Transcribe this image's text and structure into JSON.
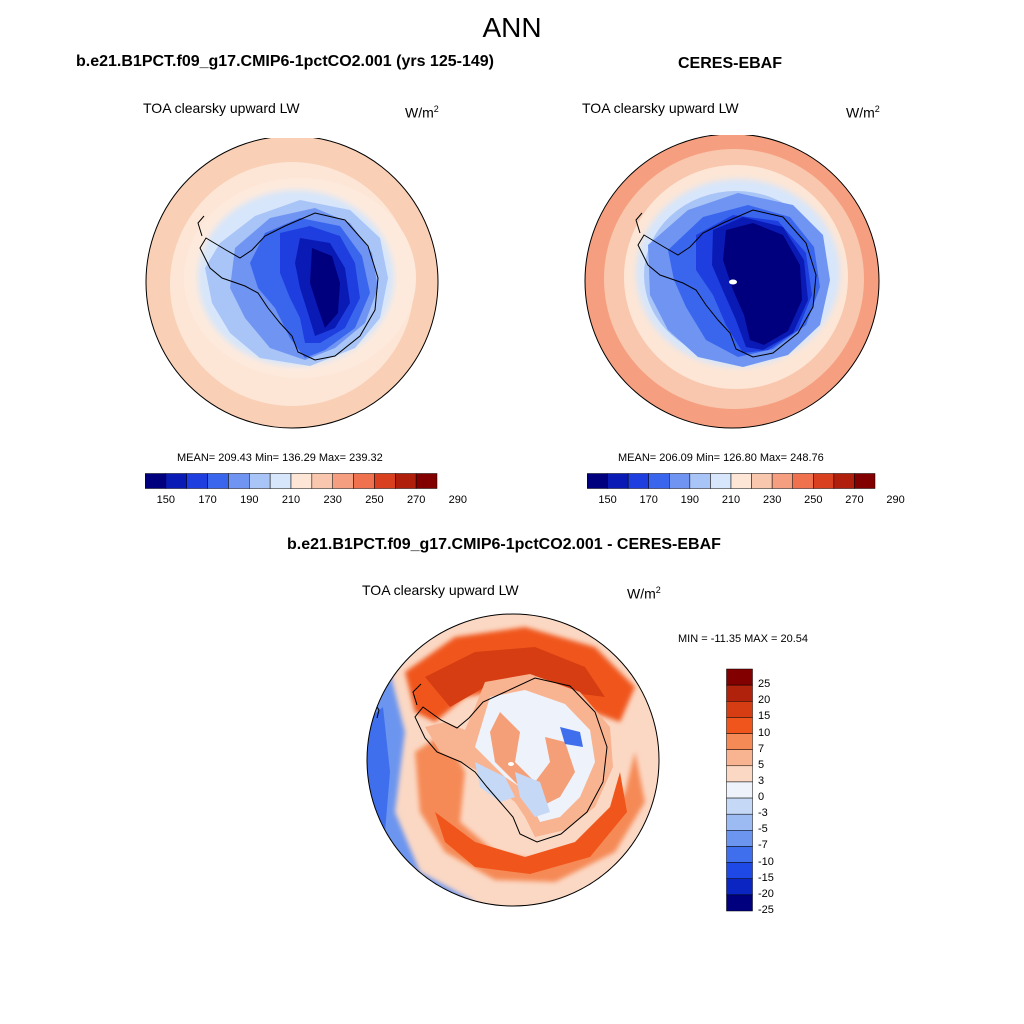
{
  "figure": {
    "title": "ANN"
  },
  "panels": [
    {
      "title": "b.e21.B1PCT.f09_g17.CMIP6-1pctCO2.001 (yrs 125-149)",
      "variable": "TOA clearsky upward LW",
      "unit": "W/m",
      "unit_sup": "2",
      "stats": "MEAN= 209.43  Min= 136.29  Max= 239.32",
      "colorbar_labels": [
        "150",
        "170",
        "190",
        "210",
        "230",
        "250",
        "270",
        "290"
      ]
    },
    {
      "title": "CERES-EBAF",
      "variable": "TOA clearsky upward LW",
      "unit": "W/m",
      "unit_sup": "2",
      "stats": "MEAN= 206.09  Min= 126.80  Max= 248.76",
      "colorbar_labels": [
        "150",
        "170",
        "190",
        "210",
        "230",
        "250",
        "270",
        "290"
      ]
    }
  ],
  "diff": {
    "title": "b.e21.B1PCT.f09_g17.CMIP6-1pctCO2.001 - CERES-EBAF",
    "variable": "TOA clearsky upward LW",
    "unit": "W/m",
    "unit_sup": "2",
    "stats": "MIN = -11.35 MAX =  20.54",
    "colorbar_labels": [
      "25",
      "20",
      "15",
      "10",
      "7",
      "5",
      "3",
      "0",
      "-3",
      "-5",
      "-7",
      "-10",
      "-15",
      "-20",
      "-25"
    ]
  },
  "colors": {
    "abs_scale": [
      "#00007f",
      "#0a1ab5",
      "#1e3ee0",
      "#3a66ee",
      "#6f94f2",
      "#a9c4f6",
      "#d7e6fa",
      "#fde6d6",
      "#f9c7ad",
      "#f59f80",
      "#f0714d",
      "#d9401f",
      "#b01e0c",
      "#820000"
    ],
    "diff_scale": [
      "#820000",
      "#b0220c",
      "#d63d12",
      "#f0561c",
      "#f58a56",
      "#f8b391",
      "#fbd8c4",
      "#eef3fb",
      "#c5d8f6",
      "#9dbbf3",
      "#6c95ef",
      "#3f6fec",
      "#1e49e6",
      "#0a25c2",
      "#00007f"
    ]
  }
}
